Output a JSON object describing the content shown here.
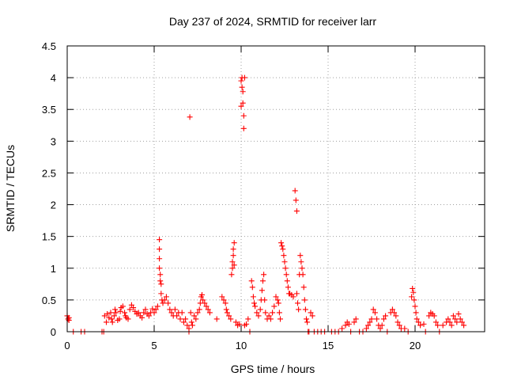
{
  "chart_data": {
    "type": "scatter",
    "title": "Day 237 of 2024, SRMTID for receiver larr",
    "xlabel": "GPS time / hours",
    "ylabel": "SRMTID / TECUs",
    "xlim": [
      0,
      24
    ],
    "ylim": [
      0,
      4.5
    ],
    "grid": true,
    "marker": "+",
    "color": "#ff0000",
    "x_ticks": [
      0,
      5,
      10,
      15,
      20
    ],
    "x_tick_labels": [
      "0",
      "5",
      "10",
      "15",
      "20"
    ],
    "y_ticks": [
      0,
      0.5,
      1,
      1.5,
      2,
      2.5,
      3,
      3.5,
      4,
      4.5
    ],
    "y_tick_labels": [
      "0",
      "0.5",
      "1",
      "1.5",
      "2",
      "2.5",
      "3",
      "3.5",
      "4",
      "4.5"
    ],
    "series": [
      {
        "points": [
          [
            0.0,
            0.25
          ],
          [
            0.05,
            0.2
          ],
          [
            0.1,
            0.18
          ],
          [
            0.1,
            0.22
          ],
          [
            0.35,
            0.0
          ],
          [
            0.8,
            0.0
          ],
          [
            1.0,
            0.0
          ],
          [
            2.0,
            0.0
          ],
          [
            2.1,
            0.0
          ],
          [
            2.15,
            0.25
          ],
          [
            2.25,
            0.15
          ],
          [
            2.3,
            0.28
          ],
          [
            2.4,
            0.22
          ],
          [
            2.5,
            0.3
          ],
          [
            2.55,
            0.2
          ],
          [
            2.6,
            0.15
          ],
          [
            2.7,
            0.25
          ],
          [
            2.75,
            0.35
          ],
          [
            2.8,
            0.3
          ],
          [
            2.9,
            0.18
          ],
          [
            3.0,
            0.2
          ],
          [
            3.05,
            0.32
          ],
          [
            3.1,
            0.38
          ],
          [
            3.2,
            0.4
          ],
          [
            3.3,
            0.3
          ],
          [
            3.35,
            0.25
          ],
          [
            3.4,
            0.22
          ],
          [
            3.5,
            0.2
          ],
          [
            3.6,
            0.35
          ],
          [
            3.7,
            0.42
          ],
          [
            3.8,
            0.38
          ],
          [
            3.9,
            0.32
          ],
          [
            4.0,
            0.28
          ],
          [
            4.1,
            0.3
          ],
          [
            4.2,
            0.25
          ],
          [
            4.3,
            0.22
          ],
          [
            4.4,
            0.3
          ],
          [
            4.5,
            0.35
          ],
          [
            4.6,
            0.28
          ],
          [
            4.7,
            0.25
          ],
          [
            4.8,
            0.3
          ],
          [
            4.9,
            0.36
          ],
          [
            5.0,
            0.3
          ],
          [
            5.1,
            0.35
          ],
          [
            5.2,
            0.4
          ],
          [
            5.3,
            1.45
          ],
          [
            5.3,
            1.3
          ],
          [
            5.3,
            1.15
          ],
          [
            5.3,
            1.0
          ],
          [
            5.35,
            0.9
          ],
          [
            5.35,
            0.8
          ],
          [
            5.4,
            0.75
          ],
          [
            5.4,
            0.6
          ],
          [
            5.45,
            0.5
          ],
          [
            5.5,
            0.45
          ],
          [
            5.6,
            0.5
          ],
          [
            5.7,
            0.55
          ],
          [
            5.8,
            0.45
          ],
          [
            5.9,
            0.35
          ],
          [
            6.0,
            0.3
          ],
          [
            6.1,
            0.25
          ],
          [
            6.2,
            0.35
          ],
          [
            6.3,
            0.25
          ],
          [
            6.4,
            0.3
          ],
          [
            6.5,
            0.2
          ],
          [
            6.6,
            0.3
          ],
          [
            6.7,
            0.15
          ],
          [
            6.8,
            0.2
          ],
          [
            6.9,
            0.1
          ],
          [
            7.0,
            0.0
          ],
          [
            7.0,
            0.05
          ],
          [
            7.05,
            3.38
          ],
          [
            7.1,
            0.3
          ],
          [
            7.15,
            0.15
          ],
          [
            7.2,
            0.1
          ],
          [
            7.3,
            0.25
          ],
          [
            7.4,
            0.2
          ],
          [
            7.5,
            0.3
          ],
          [
            7.6,
            0.35
          ],
          [
            7.65,
            0.45
          ],
          [
            7.7,
            0.55
          ],
          [
            7.75,
            0.58
          ],
          [
            7.8,
            0.5
          ],
          [
            7.9,
            0.45
          ],
          [
            8.0,
            0.4
          ],
          [
            8.1,
            0.35
          ],
          [
            8.2,
            0.3
          ],
          [
            8.6,
            0.2
          ],
          [
            8.9,
            0.55
          ],
          [
            9.0,
            0.5
          ],
          [
            9.1,
            0.45
          ],
          [
            9.15,
            0.35
          ],
          [
            9.2,
            0.3
          ],
          [
            9.3,
            0.25
          ],
          [
            9.4,
            0.2
          ],
          [
            9.45,
            0.9
          ],
          [
            9.5,
            1.0
          ],
          [
            9.5,
            1.1
          ],
          [
            9.55,
            1.2
          ],
          [
            9.55,
            1.3
          ],
          [
            9.6,
            1.4
          ],
          [
            9.6,
            1.05
          ],
          [
            9.7,
            0.15
          ],
          [
            9.8,
            0.1
          ],
          [
            9.9,
            0.12
          ],
          [
            10.0,
            3.95
          ],
          [
            10.0,
            3.55
          ],
          [
            10.05,
            4.0
          ],
          [
            10.05,
            3.85
          ],
          [
            10.1,
            3.78
          ],
          [
            10.1,
            3.6
          ],
          [
            10.15,
            3.4
          ],
          [
            10.15,
            3.2
          ],
          [
            10.2,
            4.0
          ],
          [
            10.2,
            0.1
          ],
          [
            10.3,
            0.12
          ],
          [
            10.4,
            0.2
          ],
          [
            10.5,
            0.0
          ],
          [
            10.6,
            0.8
          ],
          [
            10.65,
            0.7
          ],
          [
            10.7,
            0.55
          ],
          [
            10.75,
            0.45
          ],
          [
            10.8,
            0.4
          ],
          [
            10.9,
            0.3
          ],
          [
            11.0,
            0.25
          ],
          [
            11.1,
            0.35
          ],
          [
            11.15,
            0.5
          ],
          [
            11.2,
            0.65
          ],
          [
            11.25,
            0.8
          ],
          [
            11.3,
            0.9
          ],
          [
            11.35,
            0.5
          ],
          [
            11.4,
            0.3
          ],
          [
            11.5,
            0.2
          ],
          [
            11.6,
            0.25
          ],
          [
            11.7,
            0.2
          ],
          [
            11.8,
            0.3
          ],
          [
            11.9,
            0.4
          ],
          [
            12.0,
            0.55
          ],
          [
            12.1,
            0.5
          ],
          [
            12.15,
            0.45
          ],
          [
            12.2,
            0.3
          ],
          [
            12.25,
            0.2
          ],
          [
            12.3,
            1.4
          ],
          [
            12.35,
            1.35
          ],
          [
            12.4,
            1.3
          ],
          [
            12.45,
            1.2
          ],
          [
            12.5,
            1.1
          ],
          [
            12.55,
            1.0
          ],
          [
            12.6,
            0.9
          ],
          [
            12.65,
            0.8
          ],
          [
            12.7,
            0.7
          ],
          [
            12.75,
            0.6
          ],
          [
            12.8,
            0.6
          ],
          [
            12.9,
            0.58
          ],
          [
            13.0,
            0.55
          ],
          [
            13.1,
            2.22
          ],
          [
            13.15,
            2.07
          ],
          [
            13.2,
            1.9
          ],
          [
            13.2,
            0.6
          ],
          [
            13.25,
            0.45
          ],
          [
            13.3,
            0.35
          ],
          [
            13.35,
            0.9
          ],
          [
            13.4,
            1.2
          ],
          [
            13.45,
            1.1
          ],
          [
            13.5,
            1.0
          ],
          [
            13.55,
            0.9
          ],
          [
            13.6,
            0.7
          ],
          [
            13.65,
            0.5
          ],
          [
            13.7,
            0.35
          ],
          [
            13.75,
            0.2
          ],
          [
            13.8,
            0.15
          ],
          [
            13.85,
            0.0
          ],
          [
            13.9,
            0.0
          ],
          [
            14.0,
            0.3
          ],
          [
            14.1,
            0.25
          ],
          [
            14.2,
            0.0
          ],
          [
            14.4,
            0.0
          ],
          [
            14.6,
            0.0
          ],
          [
            14.8,
            0.0
          ],
          [
            15.2,
            0.0
          ],
          [
            15.4,
            0.0
          ],
          [
            15.6,
            0.0
          ],
          [
            15.8,
            0.05
          ],
          [
            16.0,
            0.1
          ],
          [
            16.1,
            0.15
          ],
          [
            16.2,
            0.12
          ],
          [
            16.3,
            0.0
          ],
          [
            16.5,
            0.15
          ],
          [
            16.6,
            0.2
          ],
          [
            16.8,
            0.0
          ],
          [
            17.0,
            0.0
          ],
          [
            17.2,
            0.05
          ],
          [
            17.3,
            0.1
          ],
          [
            17.4,
            0.15
          ],
          [
            17.5,
            0.2
          ],
          [
            17.6,
            0.35
          ],
          [
            17.7,
            0.3
          ],
          [
            17.8,
            0.2
          ],
          [
            17.9,
            0.1
          ],
          [
            18.0,
            0.05
          ],
          [
            18.1,
            0.1
          ],
          [
            18.2,
            0.2
          ],
          [
            18.3,
            0.25
          ],
          [
            18.4,
            0.0
          ],
          [
            18.6,
            0.3
          ],
          [
            18.7,
            0.35
          ],
          [
            18.8,
            0.3
          ],
          [
            18.9,
            0.25
          ],
          [
            19.0,
            0.15
          ],
          [
            19.1,
            0.1
          ],
          [
            19.2,
            0.05
          ],
          [
            19.4,
            0.05
          ],
          [
            19.6,
            0.0
          ],
          [
            19.8,
            0.55
          ],
          [
            19.85,
            0.68
          ],
          [
            19.9,
            0.62
          ],
          [
            19.95,
            0.5
          ],
          [
            20.0,
            0.4
          ],
          [
            20.05,
            0.3
          ],
          [
            20.1,
            0.2
          ],
          [
            20.2,
            0.15
          ],
          [
            20.3,
            0.1
          ],
          [
            20.5,
            0.12
          ],
          [
            20.6,
            0.0
          ],
          [
            20.8,
            0.25
          ],
          [
            20.9,
            0.3
          ],
          [
            21.0,
            0.28
          ],
          [
            21.1,
            0.25
          ],
          [
            21.2,
            0.15
          ],
          [
            21.3,
            0.1
          ],
          [
            21.4,
            0.0
          ],
          [
            21.6,
            0.1
          ],
          [
            21.8,
            0.15
          ],
          [
            21.9,
            0.2
          ],
          [
            22.0,
            0.15
          ],
          [
            22.1,
            0.1
          ],
          [
            22.2,
            0.25
          ],
          [
            22.3,
            0.2
          ],
          [
            22.4,
            0.15
          ],
          [
            22.5,
            0.28
          ],
          [
            22.6,
            0.2
          ],
          [
            22.7,
            0.15
          ],
          [
            22.8,
            0.1
          ]
        ]
      }
    ]
  }
}
